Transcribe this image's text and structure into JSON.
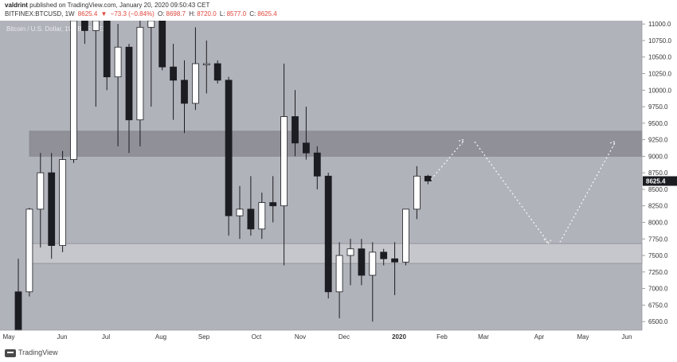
{
  "header": {
    "author": "valdrint",
    "published_text": "published on TradingView.com, January 20, 2020 09:50:43 CET",
    "symbol": "BITFINEX:BTCUSD, 1W",
    "last": "8625.4",
    "change_arrow": "▼",
    "change": "−73.3 (−0.84%)",
    "open_label": "O:",
    "open": "8698.7",
    "high_label": "H:",
    "high": "8720.0",
    "low_label": "L:",
    "low": "8577.0",
    "close_label": "C:",
    "close": "8625.4"
  },
  "footer": {
    "brand": "TradingView"
  },
  "colors": {
    "background": "#b1b3ba",
    "up": "#ffffff",
    "down": "#1c1d22",
    "resistance_zone": "#8f9098",
    "support_zone": "#c6c7cc",
    "price_tag": "#1c1d22"
  },
  "chart_data": {
    "type": "candlestick",
    "title": "Bitcoin / U.S. Dollar, 1W, BITFINEX",
    "y_axis": {
      "range": [
        6370,
        11050
      ],
      "ticks": [
        6500,
        6750,
        7000,
        7250,
        7500,
        7750,
        8000,
        8250,
        8500,
        8750,
        9000,
        9250,
        9500,
        9750,
        10000,
        10250,
        10500,
        10750,
        11000
      ],
      "tick_labels": [
        "6500.0",
        "6750.0",
        "7000.0",
        "7250.0",
        "7500.0",
        "7750.0",
        "8000.0",
        "8250.0",
        "8500.0",
        "8750.0",
        "9000.0",
        "9250.0",
        "9500.0",
        "9750.0",
        "10000.0",
        "10250.0",
        "10500.0",
        "10750.0",
        "11000.0"
      ]
    },
    "x_axis": {
      "labels": [
        "May",
        "Jun",
        "Jul",
        "Aug",
        "Sep",
        "Oct",
        "Nov",
        "Dec",
        "2020",
        "Feb",
        "Mar",
        "Apr",
        "May",
        "Jun"
      ]
    },
    "last_price": 8625.4,
    "zones": [
      {
        "name": "resistance",
        "from": 9000,
        "to": 9380
      },
      {
        "name": "support",
        "from": 7380,
        "to": 7680
      }
    ],
    "projection": [
      {
        "x": 8625,
        "y": 8650
      },
      {
        "x": 9210,
        "y": 9220
      },
      {
        "x": 7700,
        "y": 7700
      },
      {
        "x": 9200,
        "y": 9200
      }
    ],
    "candles": [
      {
        "o": 6950,
        "h": 7450,
        "l": 6370,
        "c": 6370
      },
      {
        "o": 6950,
        "h": 8220,
        "l": 6880,
        "c": 8200
      },
      {
        "o": 8200,
        "h": 9050,
        "l": 7620,
        "c": 8750
      },
      {
        "o": 8750,
        "h": 9050,
        "l": 7450,
        "c": 7650
      },
      {
        "o": 7650,
        "h": 9080,
        "l": 7550,
        "c": 8950
      },
      {
        "o": 8950,
        "h": 11050,
        "l": 8900,
        "c": 11050
      },
      {
        "o": 11050,
        "h": 11050,
        "l": 10700,
        "c": 10900
      },
      {
        "o": 10900,
        "h": 11050,
        "l": 9750,
        "c": 11050
      },
      {
        "o": 11050,
        "h": 11050,
        "l": 10000,
        "c": 10200
      },
      {
        "o": 10200,
        "h": 11000,
        "l": 9150,
        "c": 10650
      },
      {
        "o": 10650,
        "h": 10700,
        "l": 9050,
        "c": 9550
      },
      {
        "o": 9550,
        "h": 11050,
        "l": 9150,
        "c": 10950
      },
      {
        "o": 10950,
        "h": 11050,
        "l": 9750,
        "c": 11050
      },
      {
        "o": 11050,
        "h": 11050,
        "l": 10300,
        "c": 10350
      },
      {
        "o": 10350,
        "h": 10700,
        "l": 9550,
        "c": 10150
      },
      {
        "o": 10150,
        "h": 10450,
        "l": 9350,
        "c": 9800
      },
      {
        "o": 9800,
        "h": 10950,
        "l": 9700,
        "c": 10400
      },
      {
        "o": 10400,
        "h": 10750,
        "l": 9950,
        "c": 10400
      },
      {
        "o": 10400,
        "h": 10450,
        "l": 10100,
        "c": 10150
      },
      {
        "o": 10150,
        "h": 10200,
        "l": 7800,
        "c": 8100
      },
      {
        "o": 8100,
        "h": 8550,
        "l": 7750,
        "c": 8200
      },
      {
        "o": 8200,
        "h": 8700,
        "l": 7800,
        "c": 7900
      },
      {
        "o": 7900,
        "h": 8450,
        "l": 7750,
        "c": 8300
      },
      {
        "o": 8300,
        "h": 8700,
        "l": 8000,
        "c": 8250
      },
      {
        "o": 8250,
        "h": 10400,
        "l": 7350,
        "c": 9600
      },
      {
        "o": 9600,
        "h": 10000,
        "l": 9000,
        "c": 9200
      },
      {
        "o": 9200,
        "h": 9750,
        "l": 8950,
        "c": 9050
      },
      {
        "o": 9050,
        "h": 9150,
        "l": 8500,
        "c": 8700
      },
      {
        "o": 8700,
        "h": 8750,
        "l": 6850,
        "c": 6950
      },
      {
        "o": 6950,
        "h": 7700,
        "l": 6550,
        "c": 7500
      },
      {
        "o": 7500,
        "h": 7750,
        "l": 7050,
        "c": 7600
      },
      {
        "o": 7600,
        "h": 7750,
        "l": 7050,
        "c": 7200
      },
      {
        "o": 7200,
        "h": 7700,
        "l": 6500,
        "c": 7550
      },
      {
        "o": 7550,
        "h": 7600,
        "l": 7350,
        "c": 7450
      },
      {
        "o": 7450,
        "h": 7700,
        "l": 6900,
        "c": 7400
      },
      {
        "o": 7400,
        "h": 8200,
        "l": 7350,
        "c": 8200
      },
      {
        "o": 8200,
        "h": 8850,
        "l": 8050,
        "c": 8700
      },
      {
        "o": 8698.7,
        "h": 8720,
        "l": 8577,
        "c": 8625.4
      }
    ]
  }
}
